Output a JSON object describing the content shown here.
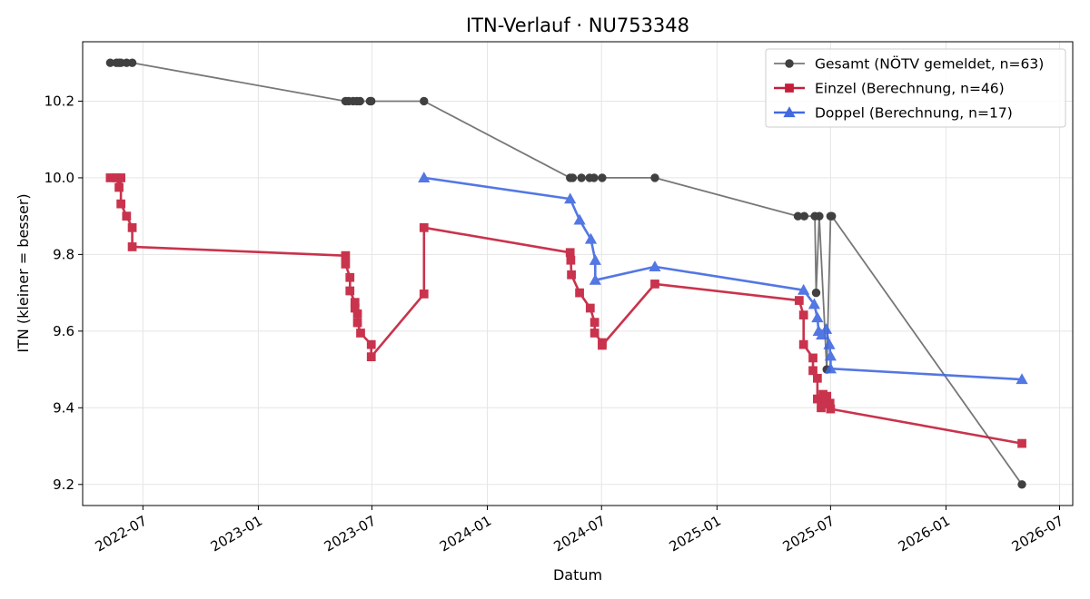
{
  "chart_data": {
    "type": "line",
    "title": "ITN-Verlauf · NU753348",
    "xlabel": "Datum",
    "ylabel": "ITN  (kleiner = besser)",
    "x_is_date": true,
    "xlim": [
      "2022-03-27",
      "2026-07-22"
    ],
    "ylim": [
      9.145,
      10.355
    ],
    "x_ticks": [
      "2022-07-01",
      "2023-01-01",
      "2023-07-01",
      "2024-01-01",
      "2024-07-01",
      "2025-01-01",
      "2025-07-01",
      "2026-01-01",
      "2026-07-01"
    ],
    "x_tick_labels": [
      "2022-07",
      "2023-01",
      "2023-07",
      "2024-01",
      "2024-07",
      "2025-01",
      "2025-07",
      "2026-01",
      "2026-07"
    ],
    "y_ticks": [
      9.2,
      9.4,
      9.6,
      9.8,
      10.0,
      10.2
    ],
    "y_tick_labels": [
      "9.2",
      "9.4",
      "9.6",
      "9.8",
      "10.0",
      "10.2"
    ],
    "grid": true,
    "legend_position": "top-right",
    "series": [
      {
        "name": "Gesamt (NÖTV gemeldet, n=63)",
        "color": "#777777",
        "marker_color": "#404040",
        "marker": "circle",
        "points": [
          [
            "2022-05-10",
            10.3
          ],
          [
            "2022-05-20",
            10.3
          ],
          [
            "2022-05-24",
            10.3
          ],
          [
            "2022-05-27",
            10.3
          ],
          [
            "2022-06-05",
            10.3
          ],
          [
            "2022-06-14",
            10.3
          ],
          [
            "2023-05-20",
            10.2
          ],
          [
            "2023-05-25",
            10.2
          ],
          [
            "2023-06-01",
            10.2
          ],
          [
            "2023-06-07",
            10.2
          ],
          [
            "2023-06-12",
            10.2
          ],
          [
            "2023-06-28",
            10.2
          ],
          [
            "2023-06-30",
            10.2
          ],
          [
            "2023-09-22",
            10.2
          ],
          [
            "2024-05-12",
            10.0
          ],
          [
            "2024-05-16",
            10.0
          ],
          [
            "2024-05-30",
            10.0
          ],
          [
            "2024-06-12",
            10.0
          ],
          [
            "2024-06-19",
            10.0
          ],
          [
            "2024-07-02",
            10.0
          ],
          [
            "2024-09-24",
            10.0
          ],
          [
            "2025-05-10",
            9.9
          ],
          [
            "2025-05-20",
            9.9
          ],
          [
            "2025-06-06",
            9.9
          ],
          [
            "2025-06-08",
            9.7
          ],
          [
            "2025-06-13",
            9.9
          ],
          [
            "2025-06-25",
            9.5
          ],
          [
            "2025-07-01",
            9.9
          ],
          [
            "2025-07-03",
            9.9
          ],
          [
            "2026-05-02",
            9.2
          ]
        ]
      },
      {
        "name": "Einzel (Berechnung, n=46)",
        "color": "#C41E3A",
        "marker_color": "#C41E3A",
        "marker": "square",
        "points": [
          [
            "2022-05-10",
            10.0
          ],
          [
            "2022-05-20",
            10.0
          ],
          [
            "2022-05-24",
            9.975
          ],
          [
            "2022-05-27",
            10.0
          ],
          [
            "2022-05-27",
            9.932
          ],
          [
            "2022-06-05",
            9.9
          ],
          [
            "2022-06-14",
            9.87
          ],
          [
            "2022-06-14",
            9.82
          ],
          [
            "2023-05-20",
            9.797
          ],
          [
            "2023-05-20",
            9.775
          ],
          [
            "2023-05-27",
            9.74
          ],
          [
            "2023-05-27",
            9.705
          ],
          [
            "2023-06-04",
            9.675
          ],
          [
            "2023-06-04",
            9.66
          ],
          [
            "2023-06-08",
            9.645
          ],
          [
            "2023-06-08",
            9.622
          ],
          [
            "2023-06-13",
            9.595
          ],
          [
            "2023-06-30",
            9.565
          ],
          [
            "2023-06-30",
            9.533
          ],
          [
            "2023-09-22",
            9.697
          ],
          [
            "2023-09-22",
            9.87
          ],
          [
            "2024-05-12",
            9.805
          ],
          [
            "2024-05-13",
            9.785
          ],
          [
            "2024-05-14",
            9.747
          ],
          [
            "2024-05-27",
            9.7
          ],
          [
            "2024-06-13",
            9.66
          ],
          [
            "2024-06-20",
            9.623
          ],
          [
            "2024-06-20",
            9.595
          ],
          [
            "2024-07-02",
            9.57
          ],
          [
            "2024-07-02",
            9.563
          ],
          [
            "2024-09-24",
            9.723
          ],
          [
            "2025-05-12",
            9.68
          ],
          [
            "2025-05-19",
            9.642
          ],
          [
            "2025-05-19",
            9.565
          ],
          [
            "2025-06-03",
            9.53
          ],
          [
            "2025-06-03",
            9.497
          ],
          [
            "2025-06-10",
            9.477
          ],
          [
            "2025-06-10",
            9.423
          ],
          [
            "2025-06-16",
            9.4
          ],
          [
            "2025-06-19",
            9.435
          ],
          [
            "2025-06-23",
            9.413
          ],
          [
            "2025-06-25",
            9.43
          ],
          [
            "2025-06-30",
            9.412
          ],
          [
            "2025-06-30",
            9.41
          ],
          [
            "2025-07-01",
            9.397
          ],
          [
            "2026-05-02",
            9.307
          ]
        ]
      },
      {
        "name": "Doppel (Berechnung, n=17)",
        "color": "#4169E1",
        "marker_color": "#4169E1",
        "marker": "triangle",
        "points": [
          [
            "2023-09-22",
            10.0
          ],
          [
            "2024-05-12",
            9.945
          ],
          [
            "2024-05-27",
            9.89
          ],
          [
            "2024-06-14",
            9.84
          ],
          [
            "2024-06-21",
            9.785
          ],
          [
            "2024-06-21",
            9.733
          ],
          [
            "2024-09-24",
            9.768
          ],
          [
            "2025-05-19",
            9.707
          ],
          [
            "2025-06-05",
            9.67
          ],
          [
            "2025-06-10",
            9.635
          ],
          [
            "2025-06-12",
            9.6
          ],
          [
            "2025-06-17",
            9.59
          ],
          [
            "2025-06-24",
            9.605
          ],
          [
            "2025-06-29",
            9.565
          ],
          [
            "2025-07-01",
            9.535
          ],
          [
            "2025-07-01",
            9.502
          ],
          [
            "2026-05-02",
            9.474
          ]
        ]
      }
    ]
  }
}
